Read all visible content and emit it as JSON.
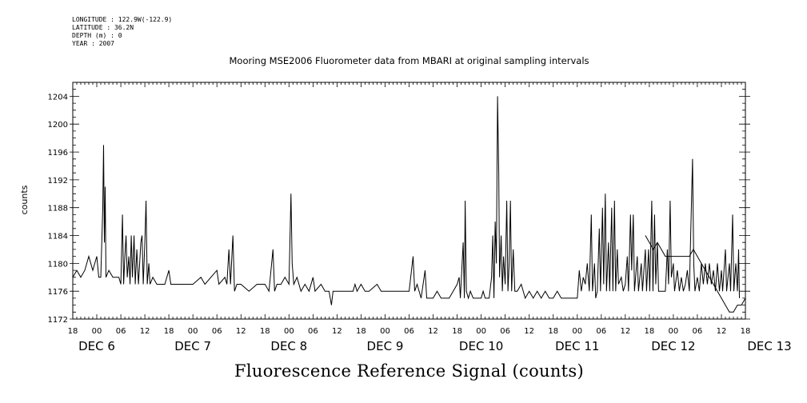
{
  "meta_lines": [
    "LONGITUDE : 122.9W(-122.9)",
    "LATITUDE : 36.2N",
    "DEPTH (m) : 0",
    "YEAR : 2007"
  ],
  "chart_data": {
    "type": "line",
    "title": "Mooring MSE2006 Fluorometer data from MBARI at original sampling intervals",
    "xlabel": "Fluorescence Reference Signal (counts)",
    "ylabel": "counts",
    "ylim": [
      1172,
      1206
    ],
    "yticks": [
      1172,
      1176,
      1180,
      1184,
      1188,
      1192,
      1196,
      1200,
      1204
    ],
    "xlim_hours": [
      -6,
      162
    ],
    "x_hour_ticks": [
      "18",
      "00",
      "06",
      "12",
      "18",
      "00",
      "06",
      "12",
      "18",
      "00",
      "06",
      "12",
      "18",
      "00",
      "06",
      "12",
      "18",
      "00",
      "06",
      "12",
      "18",
      "00",
      "06",
      "12",
      "18",
      "00",
      "06",
      "12",
      "18"
    ],
    "x_day_labels": [
      "DEC  6",
      "DEC  7",
      "DEC  8",
      "DEC  9",
      "DEC 10",
      "DEC 11",
      "DEC 12",
      "DEC 13"
    ],
    "grid": false,
    "series": [
      {
        "color": "#000000",
        "points": [
          [
            -6,
            1178
          ],
          [
            -5,
            1179
          ],
          [
            -4,
            1178
          ],
          [
            -3,
            1179
          ],
          [
            -2,
            1181
          ],
          [
            -1,
            1179
          ],
          [
            0,
            1181
          ],
          [
            0.5,
            1178
          ],
          [
            1,
            1178
          ],
          [
            1.5,
            1188
          ],
          [
            1.7,
            1197
          ],
          [
            1.9,
            1183
          ],
          [
            2.1,
            1191
          ],
          [
            2.3,
            1178
          ],
          [
            3,
            1179
          ],
          [
            4,
            1178
          ],
          [
            5,
            1178
          ],
          [
            5.5,
            1178
          ],
          [
            6,
            1177
          ],
          [
            6.4,
            1187
          ],
          [
            6.7,
            1177
          ],
          [
            7,
            1181
          ],
          [
            7.3,
            1184
          ],
          [
            7.6,
            1178
          ],
          [
            8,
            1181
          ],
          [
            8.3,
            1177
          ],
          [
            8.6,
            1184
          ],
          [
            8.9,
            1178
          ],
          [
            9.3,
            1184
          ],
          [
            9.6,
            1177
          ],
          [
            10,
            1182
          ],
          [
            10.4,
            1177
          ],
          [
            11,
            1183
          ],
          [
            11.3,
            1184
          ],
          [
            11.6,
            1177
          ],
          [
            12,
            1183
          ],
          [
            12.3,
            1189
          ],
          [
            12.6,
            1177
          ],
          [
            13,
            1180
          ],
          [
            13.3,
            1177
          ],
          [
            14,
            1178
          ],
          [
            15,
            1177
          ],
          [
            16,
            1177
          ],
          [
            17,
            1177
          ],
          [
            18,
            1179
          ],
          [
            18.5,
            1177
          ],
          [
            20,
            1177
          ],
          [
            24,
            1177
          ],
          [
            26,
            1178
          ],
          [
            27,
            1177
          ],
          [
            30,
            1179
          ],
          [
            30.5,
            1177
          ],
          [
            32,
            1178
          ],
          [
            32.5,
            1177
          ],
          [
            33,
            1182
          ],
          [
            33.4,
            1177
          ],
          [
            34,
            1184
          ],
          [
            34.4,
            1176
          ],
          [
            35,
            1177
          ],
          [
            36,
            1177
          ],
          [
            38,
            1176
          ],
          [
            40,
            1177
          ],
          [
            42,
            1177
          ],
          [
            43,
            1176
          ],
          [
            44,
            1182
          ],
          [
            44.4,
            1176
          ],
          [
            45,
            1177
          ],
          [
            46,
            1177
          ],
          [
            47,
            1178
          ],
          [
            48,
            1177
          ],
          [
            48.5,
            1190
          ],
          [
            48.8,
            1180
          ],
          [
            49.2,
            1177
          ],
          [
            50,
            1178
          ],
          [
            51,
            1176
          ],
          [
            52,
            1177
          ],
          [
            53,
            1176
          ],
          [
            54,
            1178
          ],
          [
            54.5,
            1176
          ],
          [
            56,
            1177
          ],
          [
            57,
            1176
          ],
          [
            58,
            1176
          ],
          [
            58.6,
            1174
          ],
          [
            59,
            1176
          ],
          [
            60,
            1176
          ],
          [
            62,
            1176
          ],
          [
            64,
            1176
          ],
          [
            64.5,
            1177
          ],
          [
            65,
            1176
          ],
          [
            66,
            1177
          ],
          [
            67,
            1176
          ],
          [
            68,
            1176
          ],
          [
            70,
            1177
          ],
          [
            71,
            1176
          ],
          [
            72,
            1176
          ],
          [
            74,
            1176
          ],
          [
            78,
            1176
          ],
          [
            79,
            1181
          ],
          [
            79.4,
            1176
          ],
          [
            80,
            1177
          ],
          [
            81,
            1175
          ],
          [
            82,
            1179
          ],
          [
            82.4,
            1175
          ],
          [
            83,
            1175
          ],
          [
            84,
            1175
          ],
          [
            85,
            1176
          ],
          [
            86,
            1175
          ],
          [
            88,
            1175
          ],
          [
            89,
            1176
          ],
          [
            90,
            1177
          ],
          [
            90.5,
            1178
          ],
          [
            90.8,
            1175
          ],
          [
            91.5,
            1183
          ],
          [
            91.8,
            1175
          ],
          [
            92,
            1189
          ],
          [
            92.3,
            1176
          ],
          [
            92.8,
            1175
          ],
          [
            93.3,
            1176
          ],
          [
            94,
            1175
          ],
          [
            95,
            1175
          ],
          [
            96,
            1175
          ],
          [
            96.5,
            1176
          ],
          [
            97,
            1175
          ],
          [
            98,
            1175
          ],
          [
            98.6,
            1178
          ],
          [
            98.9,
            1184
          ],
          [
            99.2,
            1175
          ],
          [
            99.5,
            1186
          ],
          [
            99.8,
            1180
          ],
          [
            100.1,
            1204
          ],
          [
            100.4,
            1193
          ],
          [
            100.6,
            1178
          ],
          [
            101,
            1184
          ],
          [
            101.3,
            1176
          ],
          [
            101.6,
            1181
          ],
          [
            102,
            1177
          ],
          [
            102.4,
            1189
          ],
          [
            102.7,
            1176
          ],
          [
            103,
            1180
          ],
          [
            103.3,
            1189
          ],
          [
            103.6,
            1176
          ],
          [
            104,
            1182
          ],
          [
            104.4,
            1176
          ],
          [
            105,
            1176
          ],
          [
            106,
            1177
          ],
          [
            107,
            1175
          ],
          [
            108,
            1176
          ],
          [
            109,
            1175
          ],
          [
            110,
            1176
          ],
          [
            111,
            1175
          ],
          [
            112,
            1176
          ],
          [
            113,
            1175
          ],
          [
            114,
            1175
          ],
          [
            115,
            1176
          ],
          [
            116,
            1175
          ],
          [
            117,
            1175
          ],
          [
            118,
            1175
          ],
          [
            119,
            1175
          ],
          [
            120,
            1175
          ],
          [
            120.5,
            1179
          ],
          [
            121,
            1176
          ],
          [
            121.5,
            1178
          ],
          [
            122,
            1177
          ],
          [
            122.5,
            1180
          ],
          [
            123,
            1176
          ],
          [
            123.5,
            1187
          ],
          [
            123.8,
            1176
          ],
          [
            124.3,
            1180
          ],
          [
            124.6,
            1175
          ],
          [
            125,
            1176
          ],
          [
            125.5,
            1185
          ],
          [
            125.8,
            1176
          ],
          [
            126.3,
            1188
          ],
          [
            126.6,
            1177
          ],
          [
            127,
            1190
          ],
          [
            127.3,
            1176
          ],
          [
            127.8,
            1183
          ],
          [
            128.1,
            1176
          ],
          [
            128.6,
            1188
          ],
          [
            128.9,
            1176
          ],
          [
            129.3,
            1189
          ],
          [
            129.6,
            1176
          ],
          [
            130,
            1182
          ],
          [
            130.3,
            1177
          ],
          [
            131,
            1178
          ],
          [
            131.5,
            1176
          ],
          [
            132,
            1177
          ],
          [
            132.5,
            1181
          ],
          [
            132.8,
            1176
          ],
          [
            133.3,
            1187
          ],
          [
            133.6,
            1179
          ],
          [
            134,
            1187
          ],
          [
            134.3,
            1176
          ],
          [
            135,
            1181
          ],
          [
            135.3,
            1176
          ],
          [
            136,
            1180
          ],
          [
            136.3,
            1176
          ],
          [
            137,
            1182
          ],
          [
            137.3,
            1176
          ],
          [
            137.8,
            1182
          ],
          [
            138.1,
            1176
          ],
          [
            138.6,
            1189
          ],
          [
            138.9,
            1176
          ],
          [
            139.3,
            1187
          ],
          [
            139.6,
            1177
          ],
          [
            140,
            1183
          ],
          [
            140.3,
            1176
          ],
          [
            141,
            1176
          ],
          [
            142,
            1176
          ],
          [
            142.5,
            1182
          ],
          [
            142.8,
            1177
          ],
          [
            143.2,
            1189
          ],
          [
            143.5,
            1178
          ],
          [
            144,
            1180
          ],
          [
            144.3,
            1176
          ],
          [
            145,
            1179
          ],
          [
            145.5,
            1176
          ],
          [
            146,
            1178
          ],
          [
            146.5,
            1176
          ],
          [
            147,
            1177
          ],
          [
            147.5,
            1179
          ],
          [
            148,
            1176
          ],
          [
            148.5,
            1188
          ],
          [
            148.8,
            1195
          ],
          [
            149.1,
            1180
          ],
          [
            149.4,
            1176
          ],
          [
            150,
            1178
          ],
          [
            150.5,
            1176
          ],
          [
            151,
            1180
          ],
          [
            151.5,
            1177
          ],
          [
            152,
            1180
          ],
          [
            152.5,
            1177
          ],
          [
            153,
            1180
          ],
          [
            153.5,
            1177
          ],
          [
            154,
            1179
          ],
          [
            154.5,
            1176
          ],
          [
            155,
            1180
          ],
          [
            155.5,
            1176
          ],
          [
            156,
            1179
          ],
          [
            156.3,
            1176
          ],
          [
            157,
            1182
          ],
          [
            157.3,
            1176
          ],
          [
            158,
            1180
          ],
          [
            158.3,
            1176
          ],
          [
            158.8,
            1187
          ],
          [
            159.1,
            1176
          ],
          [
            159.6,
            1180
          ],
          [
            160,
            1176
          ],
          [
            160.3,
            1182
          ],
          [
            160.5,
            1175
          ]
        ]
      },
      {
        "color": "#000000",
        "points": [
          [
            137,
            1184
          ],
          [
            138,
            1183
          ],
          [
            139,
            1182
          ],
          [
            140,
            1183
          ],
          [
            141,
            1182
          ],
          [
            142,
            1181
          ],
          [
            143,
            1181
          ],
          [
            144,
            1181
          ],
          [
            145,
            1181
          ],
          [
            146,
            1181
          ],
          [
            147,
            1181
          ],
          [
            148,
            1181
          ],
          [
            149,
            1182
          ],
          [
            150,
            1181
          ],
          [
            151,
            1180
          ],
          [
            152,
            1179
          ],
          [
            153,
            1178
          ],
          [
            154,
            1177
          ],
          [
            155,
            1176
          ],
          [
            156,
            1175
          ],
          [
            157,
            1174
          ],
          [
            158,
            1173
          ],
          [
            159,
            1173
          ],
          [
            160,
            1174
          ],
          [
            161,
            1174
          ],
          [
            162,
            1175
          ]
        ]
      }
    ]
  }
}
